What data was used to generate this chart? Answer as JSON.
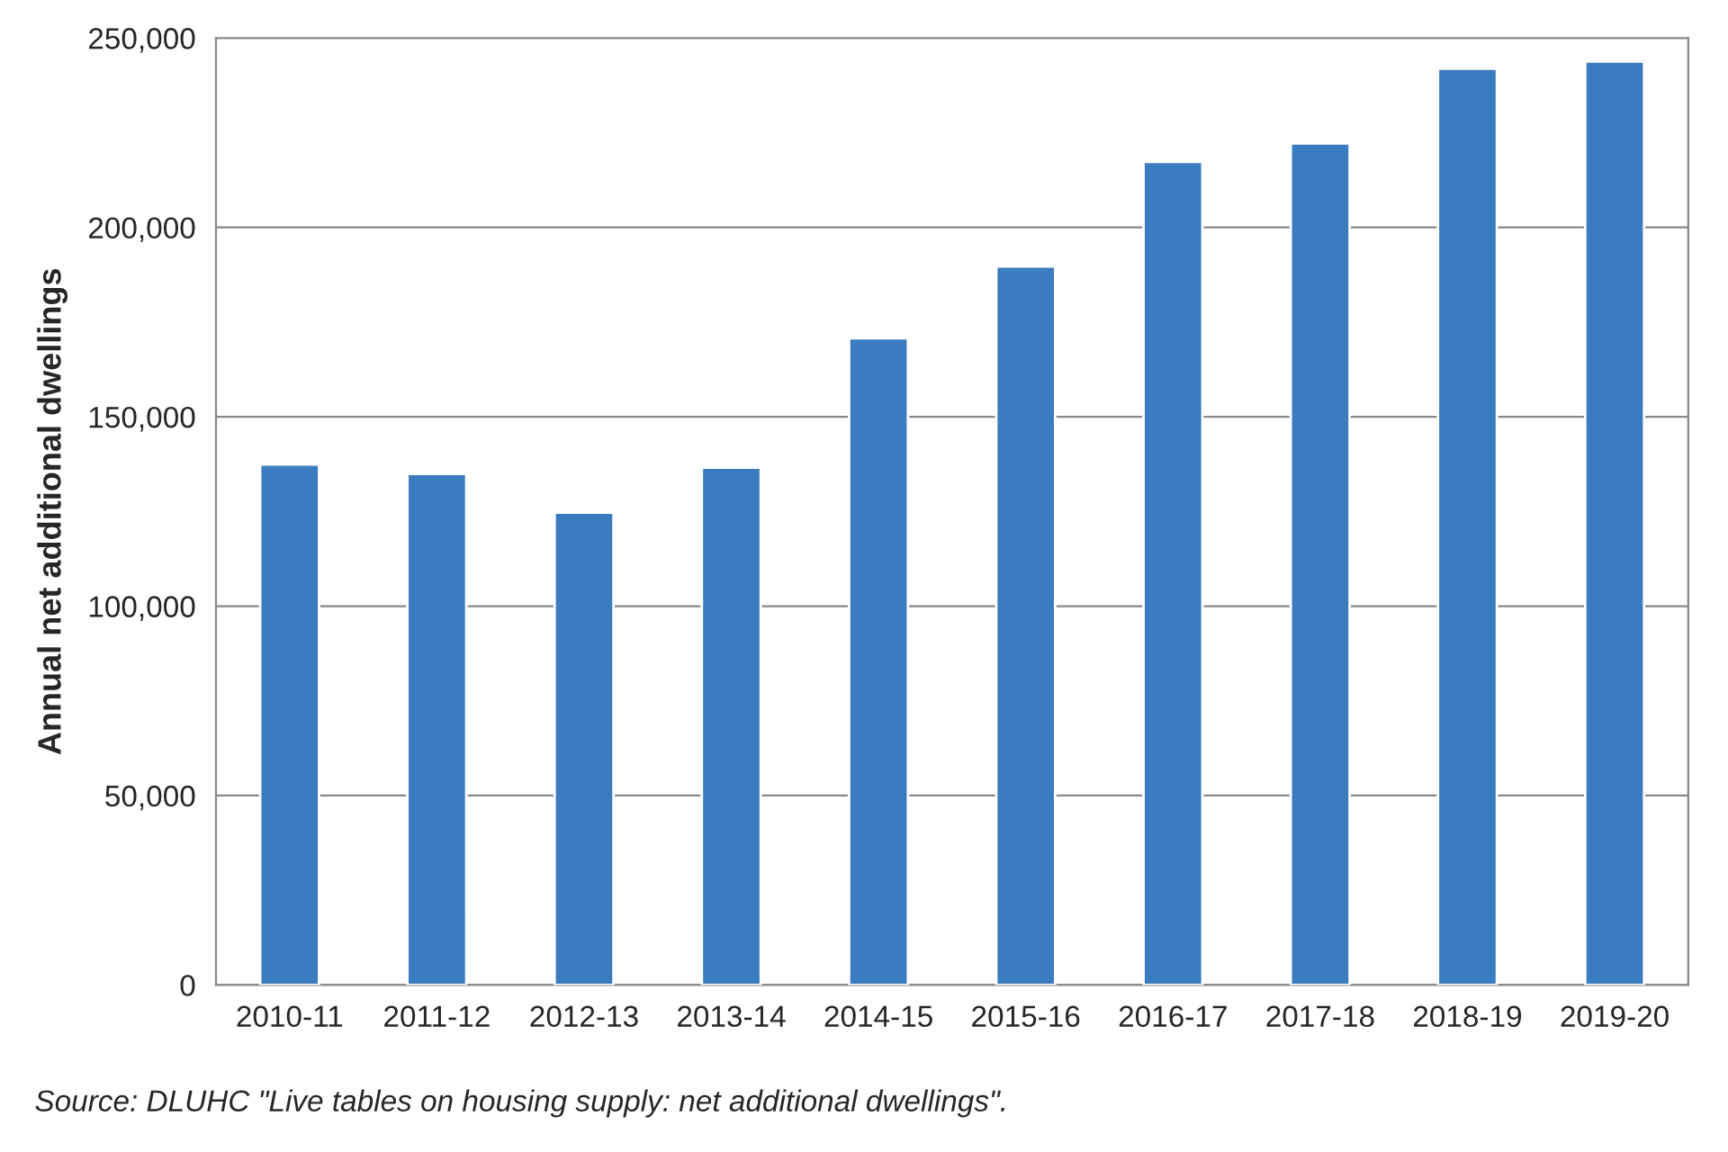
{
  "chart_data": {
    "type": "bar",
    "ylabel": "Annual net additional dwellings",
    "categories": [
      "2010-11",
      "2011-12",
      "2012-13",
      "2013-14",
      "2014-15",
      "2015-16",
      "2016-17",
      "2017-18",
      "2018-19",
      "2019-20"
    ],
    "values": [
      137400,
      134900,
      124700,
      136600,
      170700,
      189700,
      217300,
      222200,
      241900,
      243800
    ],
    "color": "#3b7bbf",
    "ylim": [
      0,
      250000
    ],
    "yticks": [
      {
        "value": 0,
        "label": "0"
      },
      {
        "value": 50000,
        "label": "50,000"
      },
      {
        "value": 100000,
        "label": "100,000"
      },
      {
        "value": 150000,
        "label": "150,000"
      },
      {
        "value": 200000,
        "label": "200,000"
      },
      {
        "value": 250000,
        "label": "250,000"
      }
    ],
    "grid": "y",
    "annotations": [
      "Source: DLUHC \"Live tables on housing supply: net additional dwellings\"."
    ]
  }
}
